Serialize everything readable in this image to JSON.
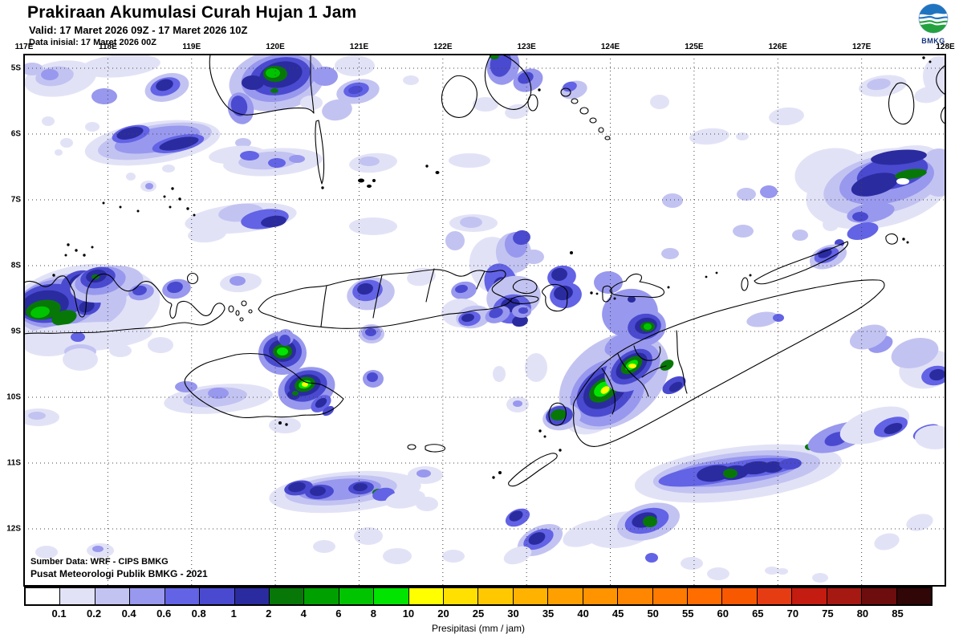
{
  "header": {
    "title": "Prakiraan Akumulasi Curah Hujan 1 Jam",
    "valid_line": "Valid: 17 Maret 2026 09Z - 17 Maret 2026 10Z",
    "init_line": "Data inisial: 17 Maret 2026 00Z"
  },
  "logo": {
    "label": "BMKG"
  },
  "map": {
    "lon_labels": [
      "117E",
      "118E",
      "119E",
      "120E",
      "121E",
      "122E",
      "123E",
      "124E",
      "125E",
      "126E",
      "127E",
      "128E"
    ],
    "lat_labels": [
      "5S",
      "6S",
      "7S",
      "8S",
      "9S",
      "10S",
      "11S",
      "12S"
    ],
    "source_line1": "Sumber Data: WRF - CIPS BMKG",
    "source_line2": "Pusat Meteorologi Publik BMKG - 2021"
  },
  "legend": {
    "caption": "Presipitasi (mm / jam)",
    "tick_labels": [
      "0.1",
      "0.2",
      "0.4",
      "0.6",
      "0.8",
      "1",
      "2",
      "4",
      "6",
      "8",
      "10",
      "20",
      "25",
      "30",
      "35",
      "40",
      "45",
      "50",
      "55",
      "60",
      "65",
      "70",
      "75",
      "80",
      "85"
    ],
    "colors": [
      "#FFFFFF",
      "#E2E2F7",
      "#C3C3F2",
      "#9898EE",
      "#6363E6",
      "#4A4AD0",
      "#2B2BA0",
      "#077807",
      "#00A000",
      "#00C400",
      "#00E400",
      "#FFFF00",
      "#FFE000",
      "#FFC800",
      "#FFB200",
      "#FFA000",
      "#FF9300",
      "#FF8600",
      "#FF7A00",
      "#FF6C00",
      "#F85800",
      "#E63C14",
      "#C41C10",
      "#A61812",
      "#6E0D0D",
      "#310606"
    ]
  }
}
